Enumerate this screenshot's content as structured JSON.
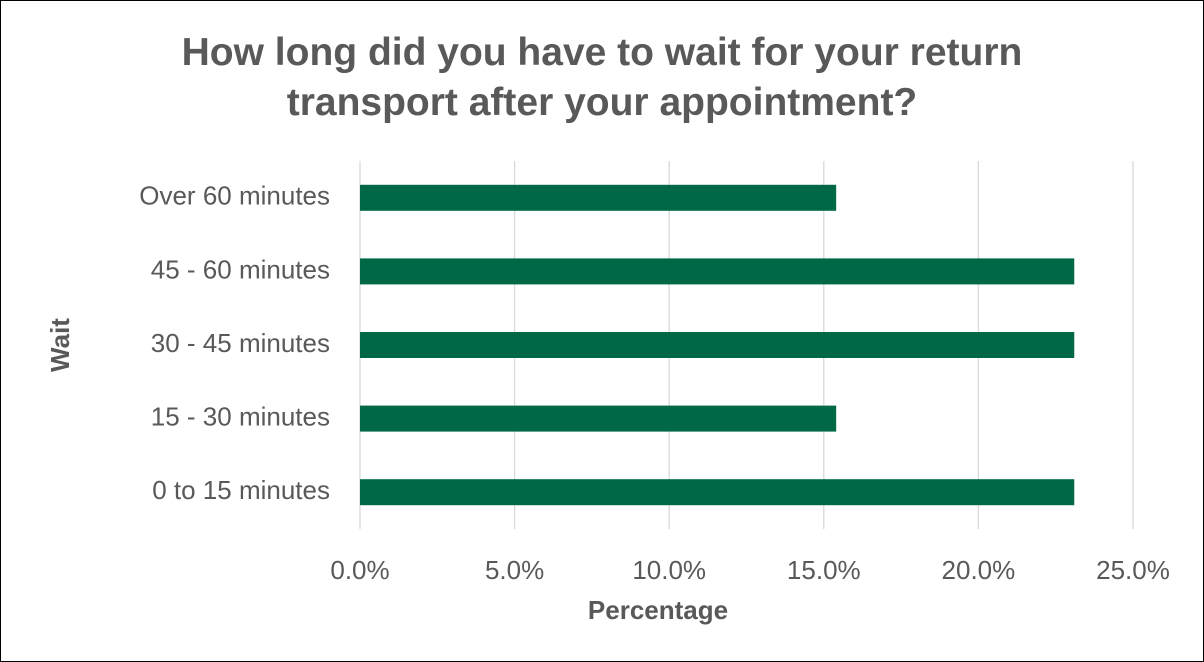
{
  "chart_data": {
    "type": "barh",
    "title": "How long did you have to wait for your return transport after your appointment?",
    "xlabel": "Percentage",
    "ylabel": "Wait",
    "categories": [
      "0 to 15 minutes",
      "15 - 30 minutes",
      "30 - 45 minutes",
      "45 - 60 minutes",
      "Over 60 minutes"
    ],
    "values": [
      23.1,
      15.4,
      23.1,
      23.1,
      15.4
    ],
    "color": "#006847",
    "xlim": [
      0,
      25
    ],
    "xticks": [
      {
        "value": 0,
        "label": "0.0%"
      },
      {
        "value": 5,
        "label": "5.0%"
      },
      {
        "value": 10,
        "label": "10.0%"
      },
      {
        "value": 15,
        "label": "15.0%"
      },
      {
        "value": 20,
        "label": "20.0%"
      },
      {
        "value": 25,
        "label": "25.0%"
      }
    ],
    "grid": true
  }
}
